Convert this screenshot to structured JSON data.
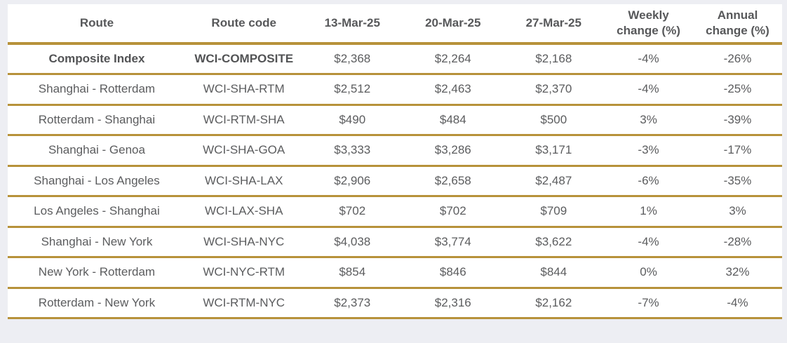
{
  "colors": {
    "accent_gold": "#B7923A",
    "text_gray": "#5B5C5E",
    "page_background": "#EDEEF3",
    "table_background": "#FFFFFF"
  },
  "chart_data": {
    "type": "table",
    "columns": [
      "Route",
      "Route code",
      "13-Mar-25",
      "20-Mar-25",
      "27-Mar-25",
      "Weekly change (%)",
      "Annual change (%)"
    ],
    "rows": [
      [
        "Composite Index",
        "WCI-COMPOSITE",
        "$2,368",
        "$2,264",
        "$2,168",
        "-4%",
        "-26%"
      ],
      [
        "Shanghai - Rotterdam",
        "WCI-SHA-RTM",
        "$2,512",
        "$2,463",
        "$2,370",
        "-4%",
        "-25%"
      ],
      [
        "Rotterdam - Shanghai",
        "WCI-RTM-SHA",
        "$490",
        "$484",
        "$500",
        "3%",
        "-39%"
      ],
      [
        "Shanghai - Genoa",
        "WCI-SHA-GOA",
        "$3,333",
        "$3,286",
        "$3,171",
        "-3%",
        "-17%"
      ],
      [
        "Shanghai - Los Angeles",
        "WCI-SHA-LAX",
        "$2,906",
        "$2,658",
        "$2,487",
        "-6%",
        "-35%"
      ],
      [
        "Los Angeles - Shanghai",
        "WCI-LAX-SHA",
        "$702",
        "$702",
        "$709",
        "1%",
        "3%"
      ],
      [
        "Shanghai - New York",
        "WCI-SHA-NYC",
        "$4,038",
        "$3,774",
        "$3,622",
        "-4%",
        "-28%"
      ],
      [
        "New York - Rotterdam",
        "WCI-NYC-RTM",
        "$854",
        "$846",
        "$844",
        "0%",
        "32%"
      ],
      [
        "Rotterdam - New York",
        "WCI-RTM-NYC",
        "$2,373",
        "$2,316",
        "$2,162",
        "-7%",
        "-4%"
      ]
    ]
  }
}
